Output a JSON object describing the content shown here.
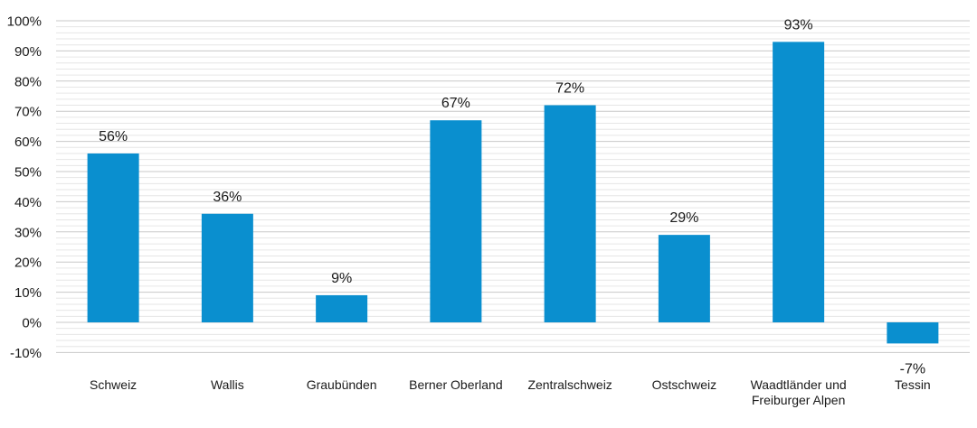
{
  "chart_data": {
    "type": "bar",
    "title": "",
    "categories": [
      [
        "Schweiz"
      ],
      [
        "Wallis"
      ],
      [
        "Graubünden"
      ],
      [
        "Berner Oberland"
      ],
      [
        "Zentralschweiz"
      ],
      [
        "Ostschweiz"
      ],
      [
        "Waadtländer und",
        "Freiburger Alpen"
      ],
      [
        "Tessin"
      ]
    ],
    "values": [
      56,
      36,
      9,
      67,
      72,
      29,
      93,
      -7
    ],
    "data_labels": [
      "56%",
      "36%",
      "9%",
      "67%",
      "72%",
      "29%",
      "93%",
      "-7%"
    ],
    "yticks": [
      "-10%",
      "0%",
      "10%",
      "20%",
      "30%",
      "40%",
      "50%",
      "60%",
      "70%",
      "80%",
      "90%",
      "100%"
    ],
    "ylim": [
      -10,
      100
    ],
    "xlabel": "",
    "ylabel": "",
    "bar_color": "#0a8fcf",
    "grid": true,
    "legend": "none"
  }
}
